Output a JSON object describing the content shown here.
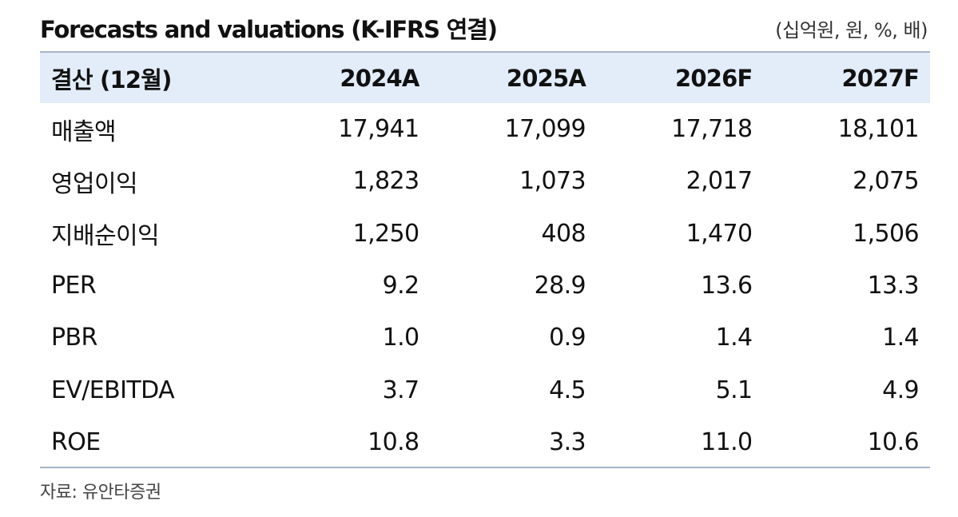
{
  "title": "Forecasts and valuations (K-IFRS 연결)",
  "units": "(십억원, 원, %, 배)",
  "table": {
    "headers": [
      "결산 (12월)",
      "2024A",
      "2025A",
      "2026F",
      "2027F"
    ],
    "rows": [
      {
        "label": "매출액",
        "values": [
          "17,941",
          "17,099",
          "17,718",
          "18,101"
        ]
      },
      {
        "label": "영업이익",
        "values": [
          "1,823",
          "1,073",
          "2,017",
          "2,075"
        ]
      },
      {
        "label": "지배순이익",
        "values": [
          "1,250",
          "408",
          "1,470",
          "1,506"
        ]
      },
      {
        "label": "PER",
        "values": [
          "9.2",
          "28.9",
          "13.6",
          "13.3"
        ]
      },
      {
        "label": "PBR",
        "values": [
          "1.0",
          "0.9",
          "1.4",
          "1.4"
        ]
      },
      {
        "label": "EV/EBITDA",
        "values": [
          "3.7",
          "4.5",
          "5.1",
          "4.9"
        ]
      },
      {
        "label": "ROE",
        "values": [
          "10.8",
          "3.3",
          "11.0",
          "10.6"
        ]
      }
    ]
  },
  "source": "자료: 유안타증권"
}
